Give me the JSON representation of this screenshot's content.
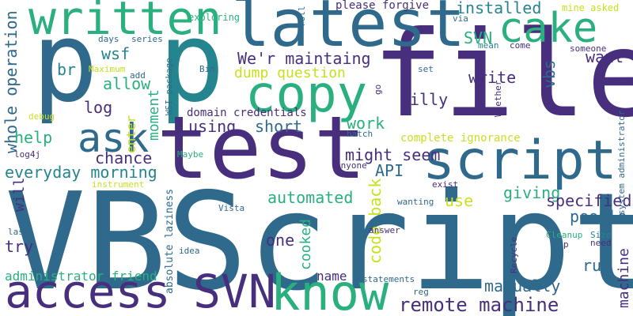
{
  "palette": {
    "dark_purple": "#472f7d",
    "blue": "#2f6a8d",
    "teal": "#25858e",
    "green": "#2ab07f",
    "light_green": "#6ccd5a",
    "yellow": "#c8e020"
  },
  "words": [
    {
      "text": "VBScript",
      "color": "#2f6a8d",
      "vertical": false
    },
    {
      "text": "p",
      "color": "#2f6a8d",
      "vertical": false
    },
    {
      "text": "p",
      "color": "#25858e",
      "vertical": false
    },
    {
      "text": "file",
      "color": "#472f7d",
      "vertical": false
    },
    {
      "text": "test",
      "color": "#472f7d",
      "vertical": false
    },
    {
      "text": "latest",
      "color": "#2f6a8d",
      "vertical": false
    },
    {
      "text": "written",
      "color": "#2ab07f",
      "vertical": false
    },
    {
      "text": "copy",
      "color": "#2ab07f",
      "vertical": false
    },
    {
      "text": "script",
      "color": "#2f6a8d",
      "vertical": false
    },
    {
      "text": "ask",
      "color": "#2f6a8d",
      "vertical": false
    },
    {
      "text": "cake",
      "color": "#2ab07f",
      "vertical": false
    },
    {
      "text": "access",
      "color": "#472f7d",
      "vertical": false
    },
    {
      "text": "SVN",
      "color": "#472f7d",
      "vertical": false
    },
    {
      "text": "know",
      "color": "#2ab07f",
      "vertical": false
    },
    {
      "text": "remote machine",
      "color": "#472f7d",
      "vertical": false
    },
    {
      "text": "We'r maintaing",
      "color": "#472f7d",
      "vertical": false
    },
    {
      "text": "everyday morning",
      "color": "#25858e",
      "vertical": false
    },
    {
      "text": "installed",
      "color": "#25858e",
      "vertical": false
    },
    {
      "text": "SVN",
      "color": "#2ab07f",
      "vertical": false
    },
    {
      "text": "want",
      "color": "#472f7d",
      "vertical": false
    },
    {
      "text": "whole operation",
      "color": "#2f6a8d",
      "vertical": true
    },
    {
      "text": "wsf",
      "color": "#25858e",
      "vertical": false
    },
    {
      "text": "br",
      "color": "#25858e",
      "vertical": false
    },
    {
      "text": "allow",
      "color": "#2ab07f",
      "vertical": false
    },
    {
      "text": "log",
      "color": "#472f7d",
      "vertical": false
    },
    {
      "text": "dump question",
      "color": "#c8e020",
      "vertical": false
    },
    {
      "text": "using",
      "color": "#472f7d",
      "vertical": false
    },
    {
      "text": "short",
      "color": "#2f6a8d",
      "vertical": false
    },
    {
      "text": "work",
      "color": "#2ab07f",
      "vertical": false
    },
    {
      "text": "silly",
      "color": "#472f7d",
      "vertical": false
    },
    {
      "text": "write",
      "color": "#472f7d",
      "vertical": false
    },
    {
      "text": "vbs",
      "color": "#2f6a8d",
      "vertical": true
    },
    {
      "text": "might seem",
      "color": "#472f7d",
      "vertical": false
    },
    {
      "text": "API",
      "color": "#2f6a8d",
      "vertical": false
    },
    {
      "text": "chance",
      "color": "#472f7d",
      "vertical": false
    },
    {
      "text": "help",
      "color": "#2ab07f",
      "vertical": false
    },
    {
      "text": "automated",
      "color": "#2ab07f",
      "vertical": false
    },
    {
      "text": "use",
      "color": "#c8e020",
      "vertical": false
    },
    {
      "text": "giving",
      "color": "#2ab07f",
      "vertical": false
    },
    {
      "text": "specified",
      "color": "#472f7d",
      "vertical": false
    },
    {
      "text": "people",
      "color": "#2f6a8d",
      "vertical": false
    },
    {
      "text": "run",
      "color": "#2f6a8d",
      "vertical": false
    },
    {
      "text": "manually",
      "color": "#2f6a8d",
      "vertical": false
    },
    {
      "text": "try",
      "color": "#472f7d",
      "vertical": false
    },
    {
      "text": "one",
      "color": "#472f7d",
      "vertical": false
    },
    {
      "text": "name",
      "color": "#472f7d",
      "vertical": false
    },
    {
      "text": "code back",
      "color": "#c8e020",
      "vertical": true
    },
    {
      "text": "cooked",
      "color": "#2ab07f",
      "vertical": true
    },
    {
      "text": "will",
      "color": "#472f7d",
      "vertical": true
    },
    {
      "text": "moment",
      "color": "#2ab07f",
      "vertical": true
    },
    {
      "text": "enter",
      "color": "#c8e020",
      "vertical": true
    },
    {
      "text": "machine",
      "color": "#472f7d",
      "vertical": true
    },
    {
      "text": "administrator friend",
      "color": "#2ab07f",
      "vertical": false
    },
    {
      "text": "domain credentials",
      "color": "#472f7d",
      "vertical": false
    },
    {
      "text": "complete ignorance",
      "color": "#c8e020",
      "vertical": false
    },
    {
      "text": "please forgive",
      "color": "#472f7d",
      "vertical": false
    },
    {
      "text": "mine asked",
      "color": "#c8e020",
      "vertical": false
    },
    {
      "text": "exploring",
      "color": "#2ab07f",
      "vertical": false
    },
    {
      "text": "days",
      "color": "#2f6a8d",
      "vertical": false
    },
    {
      "text": "series",
      "color": "#2f6a8d",
      "vertical": false
    },
    {
      "text": "Maximum",
      "color": "#c8e020",
      "vertical": false
    },
    {
      "text": "add",
      "color": "#2f6a8d",
      "vertical": false
    },
    {
      "text": "Bin",
      "color": "#2f6a8d",
      "vertical": false
    },
    {
      "text": "debug",
      "color": "#c8e020",
      "vertical": false
    },
    {
      "text": "log4j",
      "color": "#472f7d",
      "vertical": false
    },
    {
      "text": "Maybe",
      "color": "#2ab07f",
      "vertical": false
    },
    {
      "text": "instrument",
      "color": "#c8e020",
      "vertical": false
    },
    {
      "text": "idea",
      "color": "#2f6a8d",
      "vertical": false
    },
    {
      "text": "last",
      "color": "#2f6a8d",
      "vertical": false
    },
    {
      "text": "Vista",
      "color": "#2f6a8d",
      "vertical": false
    },
    {
      "text": "batch",
      "color": "#2f6a8d",
      "vertical": false
    },
    {
      "text": "anyone",
      "color": "#472f7d",
      "vertical": false
    },
    {
      "text": "exist",
      "color": "#472f7d",
      "vertical": false
    },
    {
      "text": "wanting",
      "color": "#2f6a8d",
      "vertical": false
    },
    {
      "text": "answer",
      "color": "#472f7d",
      "vertical": false
    },
    {
      "text": "statements",
      "color": "#2f6a8d",
      "vertical": false
    },
    {
      "text": "reg",
      "color": "#2f6a8d",
      "vertical": false
    },
    {
      "text": "Cleanup",
      "color": "#2ab07f",
      "vertical": false
    },
    {
      "text": "Size",
      "color": "#25858e",
      "vertical": false
    },
    {
      "text": "need",
      "color": "#472f7d",
      "vertical": false
    },
    {
      "text": "p",
      "color": "#472f7d",
      "vertical": false
    },
    {
      "text": "via",
      "color": "#2f6a8d",
      "vertical": false
    },
    {
      "text": "mean",
      "color": "#25858e",
      "vertical": false
    },
    {
      "text": "come",
      "color": "#472f7d",
      "vertical": false
    },
    {
      "text": "someone",
      "color": "#472f7d",
      "vertical": false
    },
    {
      "text": "set",
      "color": "#2f6a8d",
      "vertical": false
    },
    {
      "text": "roll",
      "color": "#2f6a8d",
      "vertical": true
    },
    {
      "text": "WSI package",
      "color": "#2f6a8d",
      "vertical": true
    },
    {
      "text": "Whether",
      "color": "#472f7d",
      "vertical": true
    },
    {
      "text": "system administrator",
      "color": "#2f6a8d",
      "vertical": true
    },
    {
      "text": "absolute laziness",
      "color": "#2f6a8d",
      "vertical": true
    },
    {
      "text": "something",
      "color": "#2f6a8d",
      "vertical": true
    },
    {
      "text": "Recycle",
      "color": "#472f7d",
      "vertical": true
    },
    {
      "text": "go",
      "color": "#472f7d",
      "vertical": true
    }
  ]
}
